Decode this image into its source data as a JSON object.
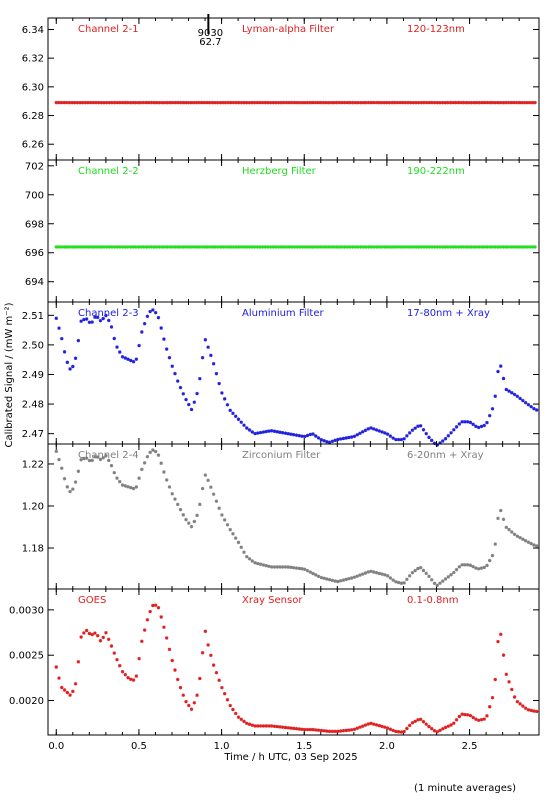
{
  "chart_data": [
    {
      "type": "scatter",
      "panel": "Channel 2-1",
      "labels": [
        "Channel 2-1",
        "Lyman-alpha Filter",
        "120-123nm"
      ],
      "color": "#e02020",
      "ylim": [
        6.249,
        6.348
      ],
      "yticks": [
        6.26,
        6.28,
        6.3,
        6.32,
        6.34
      ],
      "ytick_labels": [
        "6.26",
        "6.28",
        "6.30",
        "6.32",
        "6.34"
      ],
      "annotation": {
        "x": 0.92,
        "lines": [
          "9030",
          "62.7"
        ]
      },
      "series": [
        {
          "x": [
            0.0,
            2.9
          ],
          "y": [
            6.289,
            6.289
          ],
          "dense": true
        }
      ]
    },
    {
      "type": "scatter",
      "panel": "Channel 2-2",
      "labels": [
        "Channel 2-2",
        "Herzberg Filter",
        "190-222nm"
      ],
      "color": "#20dd20",
      "ylim": [
        692.6,
        702.4
      ],
      "yticks": [
        694,
        696,
        698,
        700,
        702
      ],
      "ytick_labels": [
        "694",
        "696",
        "698",
        "700",
        "702"
      ],
      "series": [
        {
          "x": [
            0.0,
            2.9
          ],
          "y": [
            696.4,
            696.4
          ],
          "dense": true
        }
      ]
    },
    {
      "type": "scatter",
      "panel": "Channel 2-3",
      "labels": [
        "Channel 2-3",
        "Aluminium Filter",
        "17-80nm + Xray"
      ],
      "color": "#2020dd",
      "ylim": [
        2.4665,
        2.5145
      ],
      "yticks": [
        2.47,
        2.48,
        2.49,
        2.5,
        2.51
      ],
      "ytick_labels": [
        "2.47",
        "2.48",
        "2.49",
        "2.50",
        "2.51"
      ],
      "series": [
        {
          "x": [
            0.0,
            0.03,
            0.06,
            0.09,
            0.12,
            0.15,
            0.18,
            0.21,
            0.24,
            0.27,
            0.3,
            0.33,
            0.36,
            0.4,
            0.44,
            0.48,
            0.52,
            0.56,
            0.59,
            0.62,
            0.66,
            0.7,
            0.74,
            0.78,
            0.82,
            0.86,
            0.9,
            0.92,
            0.95,
            1.0,
            1.05,
            1.1,
            1.15,
            1.2,
            1.3,
            1.4,
            1.5,
            1.55,
            1.6,
            1.65,
            1.7,
            1.8,
            1.9,
            2.0,
            2.05,
            2.1,
            2.15,
            2.2,
            2.25,
            2.3,
            2.35,
            2.4,
            2.45,
            2.5,
            2.55,
            2.6,
            2.65,
            2.68,
            2.72,
            2.78,
            2.85,
            2.9
          ],
          "y": [
            2.509,
            2.503,
            2.495,
            2.491,
            2.496,
            2.508,
            2.509,
            2.507,
            2.51,
            2.508,
            2.51,
            2.507,
            2.5,
            2.496,
            2.495,
            2.494,
            2.505,
            2.511,
            2.512,
            2.509,
            2.5,
            2.493,
            2.487,
            2.482,
            2.478,
            2.485,
            2.502,
            2.499,
            2.494,
            2.484,
            2.478,
            2.475,
            2.472,
            2.47,
            2.471,
            2.47,
            2.469,
            2.47,
            2.468,
            2.467,
            2.468,
            2.469,
            2.472,
            2.47,
            2.468,
            2.468,
            2.471,
            2.473,
            2.469,
            2.466,
            2.468,
            2.471,
            2.474,
            2.474,
            2.472,
            2.473,
            2.48,
            2.495,
            2.485,
            2.483,
            2.48,
            2.478
          ]
        }
      ]
    },
    {
      "type": "scatter",
      "panel": "Channel 2-4",
      "labels": [
        "Channel 2-4",
        "Zirconium Filter",
        "6-20nm + Xray"
      ],
      "color": "#808080",
      "ylim": [
        1.1605,
        1.2295
      ],
      "yticks": [
        1.18,
        1.2,
        1.22
      ],
      "ytick_labels": [
        "1.18",
        "1.20",
        "1.22"
      ],
      "series": [
        {
          "x": [
            0.0,
            0.03,
            0.06,
            0.09,
            0.12,
            0.15,
            0.18,
            0.21,
            0.24,
            0.27,
            0.3,
            0.33,
            0.36,
            0.4,
            0.44,
            0.48,
            0.52,
            0.56,
            0.59,
            0.62,
            0.66,
            0.7,
            0.74,
            0.78,
            0.82,
            0.86,
            0.9,
            0.92,
            0.95,
            1.0,
            1.05,
            1.1,
            1.15,
            1.2,
            1.3,
            1.4,
            1.5,
            1.55,
            1.6,
            1.65,
            1.7,
            1.8,
            1.9,
            2.0,
            2.05,
            2.1,
            2.15,
            2.2,
            2.25,
            2.3,
            2.35,
            2.4,
            2.45,
            2.5,
            2.55,
            2.6,
            2.65,
            2.68,
            2.72,
            2.78,
            2.85,
            2.9
          ],
          "y": [
            1.226,
            1.219,
            1.21,
            1.206,
            1.212,
            1.222,
            1.223,
            1.221,
            1.224,
            1.222,
            1.224,
            1.22,
            1.214,
            1.21,
            1.209,
            1.208,
            1.218,
            1.225,
            1.227,
            1.224,
            1.214,
            1.206,
            1.2,
            1.194,
            1.19,
            1.197,
            1.215,
            1.212,
            1.206,
            1.196,
            1.189,
            1.183,
            1.176,
            1.173,
            1.171,
            1.171,
            1.17,
            1.168,
            1.166,
            1.165,
            1.164,
            1.166,
            1.169,
            1.167,
            1.164,
            1.163,
            1.168,
            1.171,
            1.167,
            1.162,
            1.165,
            1.168,
            1.172,
            1.172,
            1.17,
            1.171,
            1.178,
            1.2,
            1.19,
            1.186,
            1.183,
            1.181
          ]
        }
      ]
    },
    {
      "type": "scatter",
      "panel": "GOES",
      "labels": [
        "GOES",
        "Xray Sensor",
        "0.1-0.8nm"
      ],
      "color": "#e02020",
      "ylim": [
        0.00162,
        0.00323
      ],
      "yticks": [
        0.002,
        0.0025,
        0.003
      ],
      "ytick_labels": [
        "0.0020",
        "0.0025",
        "0.0030"
      ],
      "xlabel": "Time / h UTC, 03 Sep 2025",
      "xticks": [
        0.0,
        0.5,
        1.0,
        1.5,
        2.0,
        2.5
      ],
      "xtick_labels": [
        "0.0",
        "0.5",
        "1.0",
        "1.5",
        "2.0",
        "2.5"
      ],
      "series": [
        {
          "x": [
            0.0,
            0.03,
            0.06,
            0.09,
            0.12,
            0.15,
            0.18,
            0.21,
            0.24,
            0.27,
            0.3,
            0.33,
            0.36,
            0.4,
            0.44,
            0.48,
            0.52,
            0.56,
            0.59,
            0.62,
            0.66,
            0.7,
            0.74,
            0.78,
            0.82,
            0.86,
            0.9,
            0.92,
            0.95,
            1.0,
            1.05,
            1.1,
            1.15,
            1.2,
            1.3,
            1.4,
            1.5,
            1.55,
            1.6,
            1.65,
            1.7,
            1.8,
            1.9,
            2.0,
            2.05,
            2.1,
            2.15,
            2.2,
            2.25,
            2.3,
            2.35,
            2.4,
            2.45,
            2.5,
            2.55,
            2.6,
            2.65,
            2.68,
            2.72,
            2.78,
            2.85,
            2.9
          ],
          "y": [
            0.00237,
            0.00215,
            0.0021,
            0.00205,
            0.0022,
            0.0027,
            0.00278,
            0.00272,
            0.00275,
            0.00265,
            0.00275,
            0.00262,
            0.00248,
            0.00232,
            0.00224,
            0.00222,
            0.00268,
            0.00295,
            0.00307,
            0.00302,
            0.00275,
            0.00245,
            0.0022,
            0.002,
            0.0019,
            0.0021,
            0.00278,
            0.0026,
            0.0024,
            0.00215,
            0.00195,
            0.00182,
            0.00175,
            0.00172,
            0.00172,
            0.0017,
            0.00168,
            0.00168,
            0.00167,
            0.00166,
            0.00166,
            0.00168,
            0.00175,
            0.0017,
            0.00166,
            0.00165,
            0.00175,
            0.0018,
            0.00172,
            0.00165,
            0.0017,
            0.00174,
            0.00185,
            0.00184,
            0.00178,
            0.0018,
            0.0021,
            0.00285,
            0.0023,
            0.002,
            0.0019,
            0.00188
          ]
        }
      ]
    }
  ],
  "ylabel": "Calibrated Signal / (mW m⁻²)",
  "xlim": [
    -0.05,
    2.92
  ],
  "footer": "(1 minute averages)"
}
